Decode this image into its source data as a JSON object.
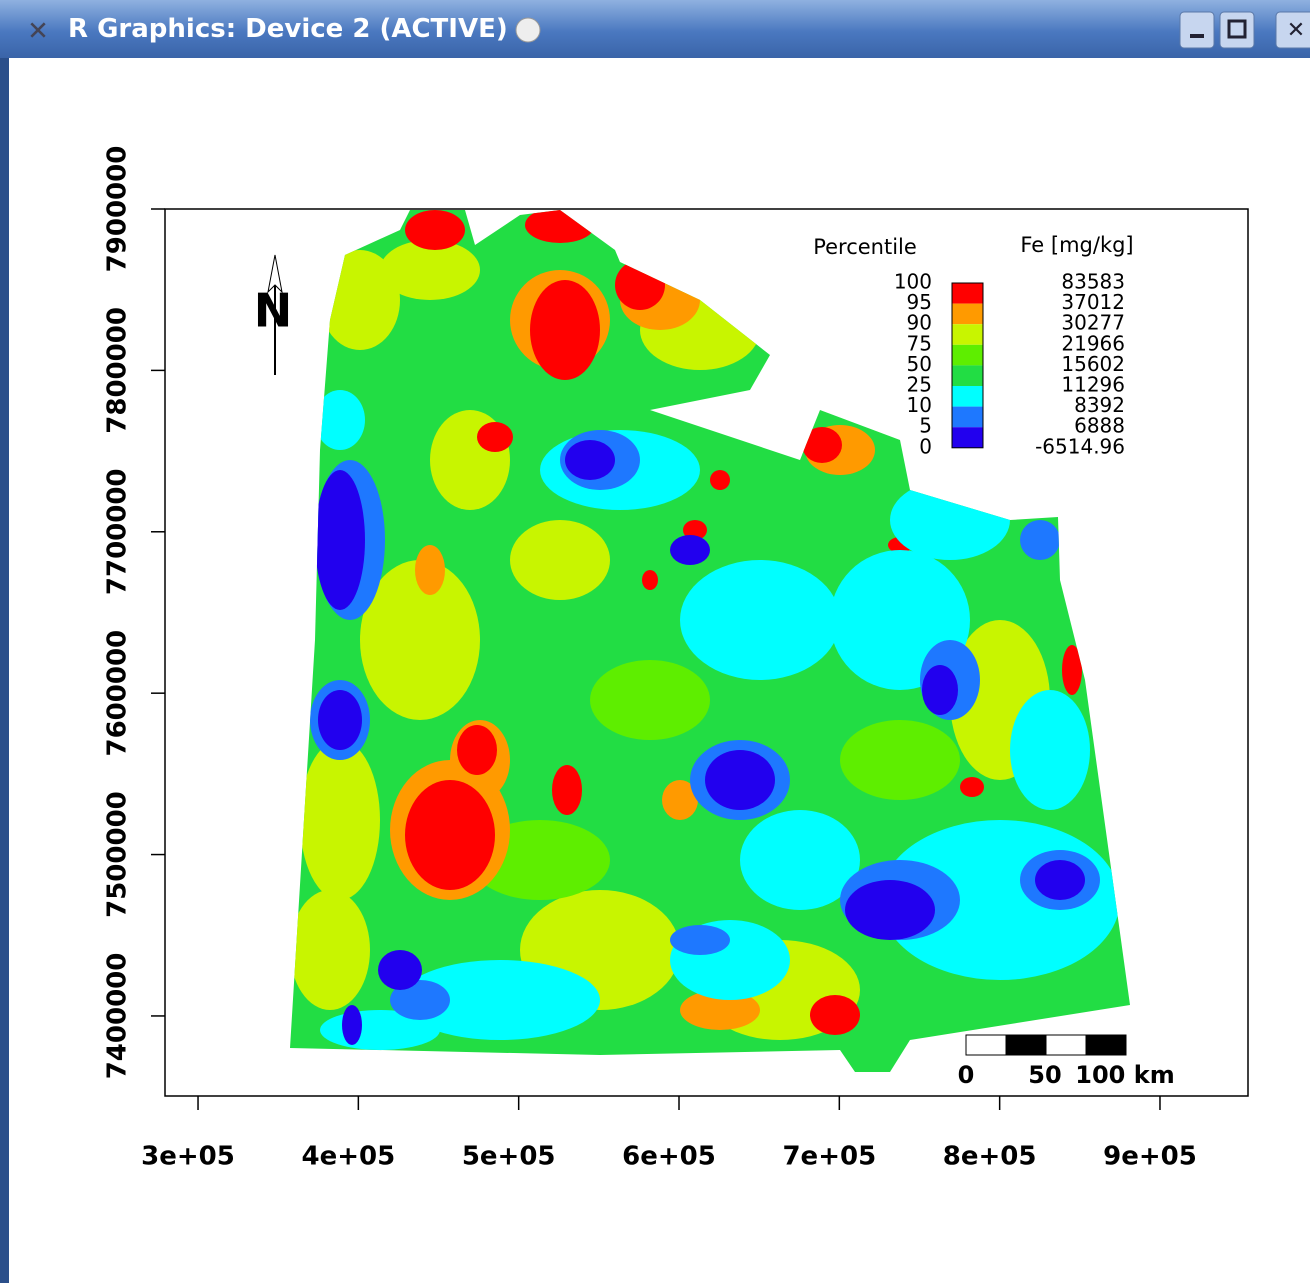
{
  "window": {
    "title": "R Graphics: Device 2 (ACTIVE)"
  },
  "plot": {
    "xlim": [
      279400,
      954900
    ],
    "ylim": [
      7350400,
      7900000
    ],
    "xticks": [
      {
        "value": 300000,
        "label": "3e+05"
      },
      {
        "value": 400000,
        "label": "4e+05"
      },
      {
        "value": 500000,
        "label": "5e+05"
      },
      {
        "value": 600000,
        "label": "6e+05"
      },
      {
        "value": 700000,
        "label": "7e+05"
      },
      {
        "value": 800000,
        "label": "8e+05"
      },
      {
        "value": 900000,
        "label": "9e+05"
      }
    ],
    "yticks": [
      7400000,
      7500000,
      7600000,
      7700000,
      7800000,
      7900000
    ],
    "north_label": "N",
    "legend": {
      "percentile_title": "Percentile",
      "value_title": "Fe [mg/kg]",
      "percentiles": [
        100,
        95,
        90,
        75,
        50,
        25,
        10,
        5,
        0
      ],
      "values": [
        83583,
        37012,
        30277,
        21966,
        15602,
        11296,
        8392,
        6888,
        -6514.96
      ],
      "colors": [
        "#ff0000",
        "#ff9a00",
        "#c8f500",
        "#5eee00",
        "#22dd44",
        "#00ffff",
        "#1e78ff",
        "#2200ee"
      ]
    },
    "scale_bar": {
      "labels": [
        "0",
        "50",
        "100 km"
      ]
    }
  }
}
